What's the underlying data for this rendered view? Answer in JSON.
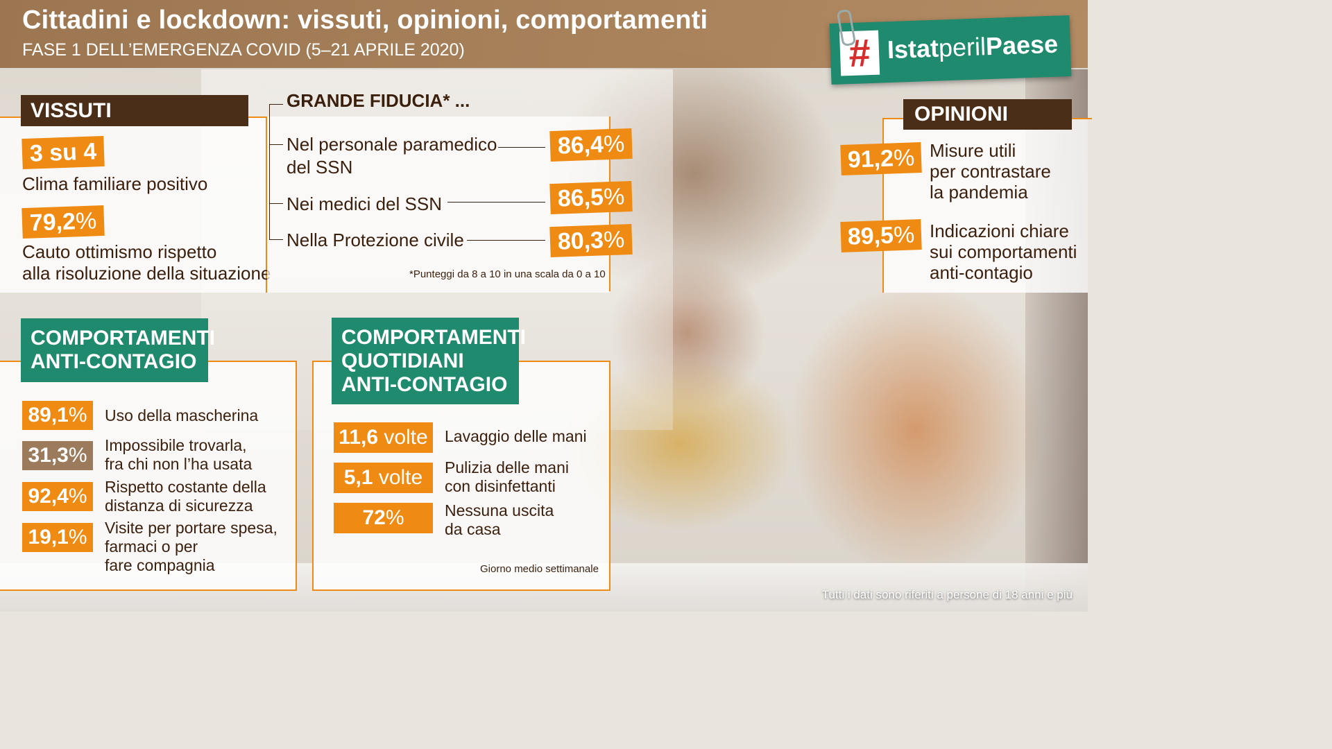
{
  "header": {
    "title": "Cittadini e lockdown: vissuti, opinioni, comportamenti",
    "subtitle": "FASE 1 DELL’EMERGENZA COVID (5–21 APRILE 2020)"
  },
  "logo": {
    "hash": "#",
    "brand_bold1": "Istat",
    "brand_mid": "peril",
    "brand_bold2": "Paese",
    "icon": "hashtag-logo"
  },
  "vissuti": {
    "title": "VISSUTI",
    "items": [
      {
        "value": "3 su 4",
        "label": "Clima familiare positivo"
      },
      {
        "value_num": "79,2",
        "value_unit": "%",
        "label_line1": "Cauto ottimismo rispetto",
        "label_line2": "alla risoluzione della situazione"
      }
    ]
  },
  "fiducia": {
    "title": "GRANDE FIDUCIA* ...",
    "items": [
      {
        "label_line1": "Nel personale paramedico",
        "label_line2": "del SSN",
        "value": "86,4",
        "unit": "%"
      },
      {
        "label_line1": "Nei medici del SSN",
        "value": "86,5",
        "unit": "%"
      },
      {
        "label_line1": "Nella Protezione civile",
        "value": "80,3",
        "unit": "%"
      }
    ],
    "note": "*Punteggi da 8 a 10 in una scala da 0 a 10"
  },
  "opinioni": {
    "title": "OPINIONI",
    "items": [
      {
        "value": "91,2",
        "unit": "%",
        "line1": "Misure utili",
        "line2": "per contrastare",
        "line3": "la pandemia"
      },
      {
        "value": "89,5",
        "unit": "%",
        "line1": "Indicazioni chiare",
        "line2": "sui comportamenti",
        "line3": "anti-contagio"
      }
    ]
  },
  "anticontagio": {
    "title_line1": "COMPORTAMENTI",
    "title_line2": "ANTI-CONTAGIO",
    "items": [
      {
        "value": "89,1",
        "unit": "%",
        "line1": "Uso della mascherina",
        "line2": ""
      },
      {
        "value": "31,3",
        "unit": "%",
        "line1": "Impossibile trovarla,",
        "line2": "fra chi non l’ha usata"
      },
      {
        "value": "92,4",
        "unit": "%",
        "line1": "Rispetto costante della",
        "line2": "distanza di sicurezza"
      },
      {
        "value": "19,1",
        "unit": "%",
        "line1": "Visite per portare spesa,",
        "line2": "farmaci o per",
        "line3": "fare compagnia"
      }
    ]
  },
  "quotidiani": {
    "title_line1": "COMPORTAMENTI",
    "title_line2": "QUOTIDIANI",
    "title_line3": "ANTI-CONTAGIO",
    "items": [
      {
        "value": "11,6",
        "unit": " volte",
        "line1": "Lavaggio delle mani",
        "line2": ""
      },
      {
        "value": "5,1",
        "unit": " volte",
        "line1": "Pulizia delle mani",
        "line2": "con disinfettanti"
      },
      {
        "value": "72",
        "unit": "%",
        "line1": "Nessuna uscita",
        "line2": "da casa"
      }
    ],
    "note": "Giorno medio settimanale"
  },
  "footer": {
    "note": "Tutti i dati sono riferiti a persone di 18 anni e più"
  },
  "colors": {
    "orange": "#ef8a12",
    "teal": "#1f8a6d",
    "dark_brown": "#4a2e17",
    "muted_brown": "#9c7a5c"
  }
}
